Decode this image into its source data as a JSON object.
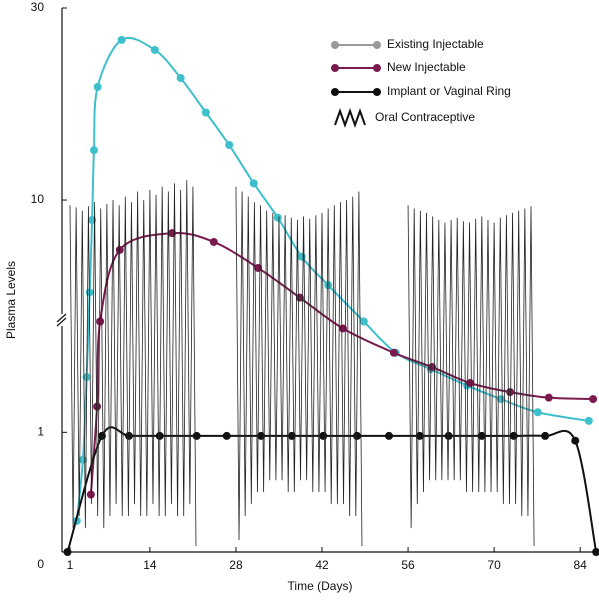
{
  "chart_data": {
    "type": "line",
    "x_label": "Time (Days)",
    "y_label": "Plasma Levels",
    "xlim": [
      -0.3,
      86.9
    ],
    "xticks": [
      1,
      14,
      28,
      42,
      56,
      70,
      84
    ],
    "ylim": [
      0,
      30
    ],
    "yticks": [
      0,
      1,
      10,
      30
    ],
    "legend": "upper right",
    "series": [
      {
        "name": "Existing Injectable",
        "color": "#3ebfcc",
        "legend_color": "#999999",
        "markers": true,
        "smooth": true,
        "x": [
          2.1,
          3.1,
          3.7,
          4.2,
          4.6,
          4.9,
          5.5,
          9.4,
          14.8,
          19.0,
          23.1,
          26.9,
          30.9,
          34.8,
          38.7,
          43.0,
          48.8,
          54.0,
          59.7,
          65.6,
          71.1,
          77.1,
          85.4
        ],
        "values": [
          0.26,
          0.77,
          1.73,
          4.0,
          8.2,
          13.3,
          19.1,
          25.0,
          23.6,
          20.1,
          16.5,
          13.7,
          11.0,
          8.4,
          5.7,
          4.3,
          3.0,
          2.2,
          1.87,
          1.59,
          1.39,
          1.22,
          1.12
        ]
      },
      {
        "name": "New Injectable",
        "color": "#7b1a4e",
        "legend_color": "#7b1a4e",
        "markers": true,
        "smooth": true,
        "x": [
          4.4,
          5.4,
          5.9,
          9.1,
          17.6,
          24.4,
          31.6,
          38.4,
          45.4,
          53.7,
          59.9,
          66.1,
          72.6,
          78.9,
          86.1
        ],
        "values": [
          0.48,
          1.29,
          3.0,
          6.1,
          7.2,
          6.6,
          5.1,
          3.8,
          2.8,
          2.2,
          1.91,
          1.63,
          1.49,
          1.41,
          1.39
        ]
      },
      {
        "name": "Implant or Vaginal Ring",
        "color": "#111111",
        "legend_color": "#111111",
        "markers": true,
        "smooth": true,
        "x": [
          0.6,
          6.2,
          10.6,
          15.6,
          21.6,
          26.5,
          32.1,
          37.1,
          42.2,
          47.7,
          52.9,
          57.9,
          62.6,
          68.0,
          73.2,
          78.3,
          83.2,
          86.6
        ],
        "values": [
          0,
          0.97,
          0.97,
          0.97,
          0.97,
          0.97,
          0.97,
          0.97,
          0.97,
          0.97,
          0.97,
          0.97,
          0.97,
          0.97,
          0.97,
          0.97,
          0.93,
          0
        ]
      },
      {
        "name": "Oral Contraceptive",
        "color": "#222222",
        "legend_color": "#111111",
        "markers": false,
        "smooth": false,
        "x": [
          1,
          1.5,
          2,
          2.5,
          3,
          3.5,
          4,
          4.5,
          5,
          5.5,
          6,
          6.5,
          7,
          7.5,
          8,
          8.5,
          9,
          9.5,
          10,
          10.5,
          11,
          11.5,
          12,
          12.5,
          13,
          13.5,
          14,
          14.5,
          15,
          15.5,
          16,
          16.5,
          17,
          17.5,
          18,
          18.5,
          19,
          19.5,
          20,
          20.5,
          21,
          21.5,
          null,
          28,
          28.5,
          29,
          29.5,
          30,
          30.5,
          31,
          31.5,
          32,
          32.5,
          33,
          33.5,
          34,
          34.5,
          35,
          35.5,
          36,
          36.5,
          37,
          37.5,
          38,
          38.5,
          39,
          39.5,
          40,
          40.5,
          41,
          41.5,
          42,
          42.5,
          43,
          43.5,
          44,
          44.5,
          45,
          45.5,
          46,
          46.5,
          47,
          47.5,
          48,
          48.5,
          null,
          56,
          56.5,
          57,
          57.5,
          58,
          58.5,
          59,
          59.5,
          60,
          60.5,
          61,
          61.5,
          62,
          62.5,
          63,
          63.5,
          64,
          64.5,
          65,
          65.5,
          66,
          66.5,
          67,
          67.5,
          68,
          68.5,
          69,
          69.5,
          70,
          70.5,
          71,
          71.5,
          72,
          72.5,
          73,
          73.5,
          74,
          74.5,
          75,
          75.5,
          76,
          76.5
        ],
        "values": [
          9.5,
          0.2,
          9.3,
          0.3,
          9.0,
          0.2,
          9.4,
          0.4,
          9.8,
          0.3,
          9.2,
          0.2,
          9.6,
          0.3,
          10.0,
          0.4,
          9.5,
          0.3,
          10.2,
          0.3,
          9.8,
          0.4,
          10.5,
          0.3,
          10.0,
          0.3,
          10.6,
          0.4,
          10.3,
          0.3,
          10.8,
          0.3,
          10.5,
          0.4,
          11.0,
          0.3,
          10.6,
          0.3,
          11.2,
          0.4,
          10.8,
          0.05,
          null,
          10.8,
          0.1,
          10.5,
          0.3,
          10.2,
          0.4,
          9.8,
          0.5,
          9.5,
          0.5,
          9.0,
          0.6,
          8.8,
          0.6,
          8.5,
          0.6,
          8.6,
          0.5,
          8.4,
          0.5,
          8.2,
          0.6,
          8.5,
          0.6,
          8.3,
          0.5,
          8.6,
          0.5,
          8.8,
          0.5,
          9.2,
          0.4,
          9.5,
          0.4,
          9.8,
          0.4,
          10.0,
          0.3,
          10.2,
          0.3,
          10.5,
          0.05,
          null,
          9.5,
          0.2,
          9.2,
          0.4,
          9.0,
          0.5,
          8.8,
          0.6,
          8.5,
          0.6,
          8.2,
          0.6,
          8.0,
          0.6,
          8.2,
          0.6,
          8.4,
          0.6,
          8.1,
          0.5,
          8.0,
          0.5,
          8.3,
          0.5,
          8.5,
          0.5,
          8.2,
          0.5,
          8.0,
          0.5,
          8.4,
          0.4,
          8.6,
          0.4,
          8.8,
          0.4,
          9.0,
          0.3,
          9.2,
          0.3,
          9.4,
          0.05
        ]
      }
    ]
  }
}
